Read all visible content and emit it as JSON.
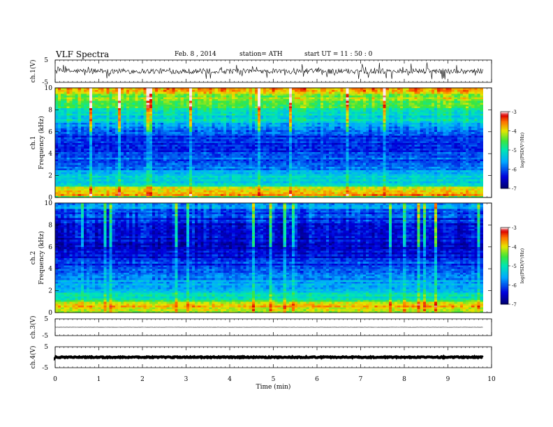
{
  "header": {
    "title": "VLF  Spectra",
    "date": "Feb. 8  , 2014",
    "station": "station= ATH",
    "start": "start  UT  =    11 : 50 : 0"
  },
  "chart_data": {
    "type": "heatmap",
    "xlabel": "Time  (min)",
    "xlim": [
      0,
      10
    ],
    "x_ticks": [
      "0",
      "1",
      "2",
      "3",
      "4",
      "5",
      "6",
      "7",
      "8",
      "9",
      "10"
    ],
    "data_end_min": 9.8,
    "panels": [
      {
        "name": "waveform-ch1",
        "kind": "waveform",
        "ylabel": "ch.1(V)",
        "ylim": [
          -5,
          5
        ],
        "y_ticks": [
          "5",
          "-5"
        ],
        "amplitude": 1.2,
        "spike_amplitude": 4.0
      },
      {
        "name": "spectrogram-ch1",
        "kind": "spectrogram",
        "ylabel": "Frequency  (kHz)",
        "channel_label": "ch.1",
        "ylim": [
          0,
          10
        ],
        "y_ticks": [
          "0",
          "2",
          "4",
          "6",
          "8",
          "10"
        ],
        "colorbar": {
          "label": "log(PSD(V²/Hz)",
          "range": [
            -7,
            -3
          ],
          "ticks": [
            "-3",
            "-4",
            "-5",
            "-6",
            "-7"
          ]
        },
        "psd_profile": [
          {
            "khz": 0.0,
            "log_psd": -4.6
          },
          {
            "khz": 0.3,
            "log_psd": -3.6
          },
          {
            "khz": 0.8,
            "log_psd": -3.8
          },
          {
            "khz": 1.2,
            "log_psd": -5.1
          },
          {
            "khz": 2.0,
            "log_psd": -5.4
          },
          {
            "khz": 3.0,
            "log_psd": -5.9
          },
          {
            "khz": 4.0,
            "log_psd": -6.1
          },
          {
            "khz": 5.0,
            "log_psd": -6.2
          },
          {
            "khz": 6.0,
            "log_psd": -6.0
          },
          {
            "khz": 7.0,
            "log_psd": -5.2
          },
          {
            "khz": 8.0,
            "log_psd": -4.9
          },
          {
            "khz": 9.0,
            "log_psd": -4.3
          },
          {
            "khz": 10.0,
            "log_psd": -3.8
          }
        ]
      },
      {
        "name": "spectrogram-ch2",
        "kind": "spectrogram",
        "ylabel": "Frequency  (kHz)",
        "channel_label": "ch.2",
        "ylim": [
          0,
          10
        ],
        "y_ticks": [
          "0",
          "2",
          "4",
          "6",
          "8",
          "10"
        ],
        "colorbar": {
          "label": "log(PSD(V²/Hz)",
          "range": [
            -7,
            -3
          ],
          "ticks": [
            "-3",
            "-4",
            "-5",
            "-6",
            "-7"
          ]
        },
        "psd_profile": [
          {
            "khz": 0.0,
            "log_psd": -4.5
          },
          {
            "khz": 0.6,
            "log_psd": -3.6
          },
          {
            "khz": 1.2,
            "log_psd": -4.9
          },
          {
            "khz": 2.0,
            "log_psd": -5.3
          },
          {
            "khz": 3.0,
            "log_psd": -5.7
          },
          {
            "khz": 4.0,
            "log_psd": -6.1
          },
          {
            "khz": 5.0,
            "log_psd": -6.3
          },
          {
            "khz": 6.0,
            "log_psd": -6.5
          },
          {
            "khz": 7.0,
            "log_psd": -6.5
          },
          {
            "khz": 8.0,
            "log_psd": -6.4
          },
          {
            "khz": 9.0,
            "log_psd": -6.1
          },
          {
            "khz": 10.0,
            "log_psd": -5.5
          }
        ]
      },
      {
        "name": "waveform-ch3",
        "kind": "waveform",
        "ylabel": "ch.3(V)",
        "ylim": [
          -5,
          5
        ],
        "y_ticks": [
          "5",
          "-5"
        ],
        "amplitude": 0.05,
        "spike_amplitude": 0.05
      },
      {
        "name": "waveform-ch4",
        "kind": "waveform",
        "ylabel": "ch.4(V)",
        "ylim": [
          -5,
          5
        ],
        "y_ticks": [
          "5",
          "-5"
        ],
        "amplitude": 0.25,
        "spike_amplitude": 0.25
      }
    ]
  }
}
